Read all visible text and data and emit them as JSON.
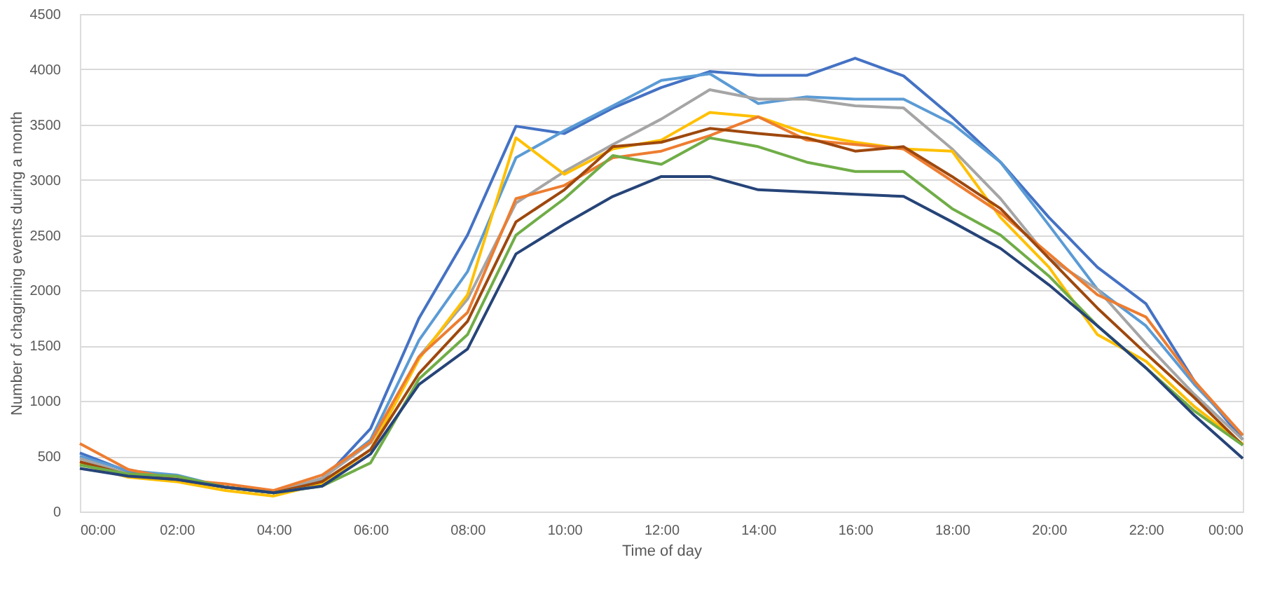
{
  "chart_data": {
    "type": "line",
    "xlabel": "Time of day",
    "ylabel": "Number of chagrining events during a month",
    "x": [
      0,
      1,
      2,
      3,
      4,
      5,
      6,
      7,
      8,
      9,
      10,
      11,
      12,
      13,
      14,
      15,
      16,
      17,
      18,
      19,
      20,
      21,
      22,
      23,
      24
    ],
    "xlim": [
      0,
      24
    ],
    "xticks": [
      {
        "value": 0,
        "label": "00:00"
      },
      {
        "value": 2,
        "label": "02:00"
      },
      {
        "value": 4,
        "label": "04:00"
      },
      {
        "value": 6,
        "label": "06:00"
      },
      {
        "value": 8,
        "label": "08:00"
      },
      {
        "value": 10,
        "label": "10:00"
      },
      {
        "value": 12,
        "label": "12:00"
      },
      {
        "value": 14,
        "label": "14:00"
      },
      {
        "value": 16,
        "label": "16:00"
      },
      {
        "value": 18,
        "label": "18:00"
      },
      {
        "value": 20,
        "label": "20:00"
      },
      {
        "value": 22,
        "label": "22:00"
      },
      {
        "value": 24,
        "label": "00:00"
      }
    ],
    "ylim": [
      0,
      4500
    ],
    "yticks": [
      0,
      500,
      1000,
      1500,
      2000,
      2500,
      3000,
      3500,
      4000,
      4500
    ],
    "grid": "y",
    "line_style": "solid",
    "series": [
      {
        "color": "#4472c4",
        "values": [
          530,
          360,
          310,
          220,
          170,
          280,
          750,
          1750,
          2500,
          3485,
          3420,
          3650,
          3835,
          3980,
          3945,
          3945,
          4100,
          3940,
          3570,
          3160,
          2660,
          2210,
          1880,
          1180,
          650
        ]
      },
      {
        "color": "#5b9bd5",
        "values": [
          500,
          370,
          330,
          220,
          170,
          300,
          650,
          1550,
          2170,
          3200,
          3445,
          3670,
          3900,
          3960,
          3690,
          3750,
          3730,
          3730,
          3510,
          3160,
          2590,
          2010,
          1680,
          1150,
          690
        ]
      },
      {
        "color": "#a5a5a5",
        "values": [
          480,
          340,
          300,
          220,
          170,
          300,
          620,
          1400,
          1920,
          2790,
          3075,
          3320,
          3550,
          3815,
          3730,
          3730,
          3670,
          3650,
          3280,
          2830,
          2290,
          2010,
          1520,
          1060,
          650
        ]
      },
      {
        "color": "#ffc000",
        "values": [
          430,
          310,
          270,
          190,
          140,
          250,
          560,
          1380,
          1960,
          3380,
          3050,
          3280,
          3360,
          3610,
          3570,
          3420,
          3340,
          3280,
          3260,
          2660,
          2210,
          1600,
          1360,
          950,
          610
        ]
      },
      {
        "color": "#ed7d31",
        "values": [
          615,
          380,
          290,
          250,
          190,
          330,
          630,
          1400,
          1800,
          2830,
          2950,
          3200,
          3260,
          3400,
          3570,
          3360,
          3320,
          3280,
          2990,
          2700,
          2330,
          1960,
          1760,
          1180,
          690
        ]
      },
      {
        "color": "#9e480e",
        "values": [
          450,
          330,
          290,
          220,
          170,
          270,
          560,
          1250,
          1720,
          2620,
          2910,
          3300,
          3340,
          3465,
          3420,
          3380,
          3260,
          3300,
          3030,
          2740,
          2290,
          1840,
          1430,
          1030,
          600
        ]
      },
      {
        "color": "#70ad47",
        "values": [
          420,
          340,
          320,
          220,
          170,
          230,
          440,
          1200,
          1600,
          2500,
          2830,
          3220,
          3140,
          3380,
          3300,
          3160,
          3075,
          3075,
          2740,
          2500,
          2130,
          1680,
          1300,
          910,
          600
        ]
      },
      {
        "color": "#264478",
        "values": [
          390,
          320,
          290,
          220,
          170,
          230,
          520,
          1150,
          1470,
          2330,
          2600,
          2850,
          3030,
          3030,
          2910,
          2890,
          2870,
          2850,
          2620,
          2380,
          2050,
          1680,
          1300,
          870,
          480
        ]
      }
    ]
  }
}
